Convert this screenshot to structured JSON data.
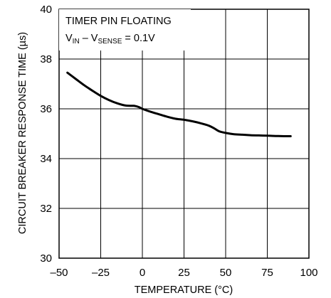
{
  "chart_data": {
    "type": "line",
    "xlabel": "TEMPERATURE (°C)",
    "ylabel": "CIRCUIT BREAKER RESPONSE TIME (µs)",
    "xlim": [
      -50,
      100
    ],
    "ylim": [
      30,
      40
    ],
    "xticks": [
      -50,
      -25,
      0,
      25,
      50,
      75,
      100
    ],
    "yticks": [
      30,
      32,
      34,
      36,
      38,
      40
    ],
    "xtick_labels": [
      "–50",
      "–25",
      "0",
      "25",
      "50",
      "75",
      "100"
    ],
    "ytick_labels": [
      "30",
      "32",
      "34",
      "36",
      "38",
      "40"
    ],
    "grid": true,
    "annotation": {
      "line1": "TIMER PIN FLOATING",
      "v1": "V",
      "v1_sub": "IN",
      "dash": " – ",
      "v2": "V",
      "v2_sub": "SENSE",
      "eq": " = 0.1V"
    },
    "series": [
      {
        "x": [
          -45,
          -40,
          -35,
          -30,
          -25,
          -20,
          -15,
          -10,
          -5,
          -2,
          0,
          5,
          10,
          15,
          20,
          25,
          30,
          35,
          40,
          43,
          46,
          50,
          55,
          60,
          65,
          70,
          75,
          80,
          85,
          89
        ],
        "y": [
          37.45,
          37.2,
          36.95,
          36.73,
          36.52,
          36.35,
          36.22,
          36.13,
          36.12,
          36.07,
          36.0,
          35.88,
          35.78,
          35.68,
          35.6,
          35.56,
          35.5,
          35.42,
          35.32,
          35.22,
          35.1,
          35.03,
          34.98,
          34.96,
          34.94,
          34.93,
          34.92,
          34.91,
          34.9,
          34.9
        ]
      }
    ]
  }
}
